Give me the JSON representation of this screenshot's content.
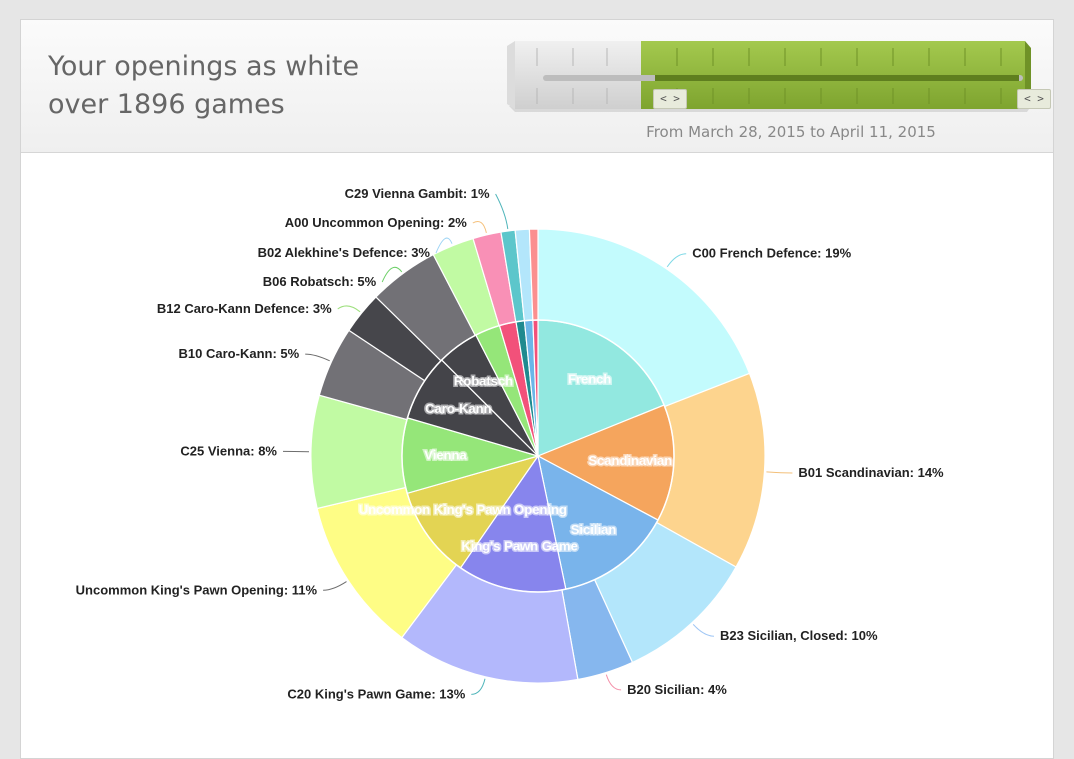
{
  "header": {
    "title_line1": "Your openings as white",
    "title_line2": "over 1896 games",
    "date_range": "From March 28, 2015 to April 11, 2015"
  },
  "slider": {
    "left_handle_icon": "arrows-left-right-icon",
    "right_handle_icon": "arrows-left-right-icon",
    "left_handle_text": "< >",
    "right_handle_text": "< >",
    "accent_color": "#8db33a"
  },
  "chart_data": {
    "type": "pie",
    "title": "",
    "outer": [
      {
        "label": "C00 French Defence",
        "value": 19,
        "color": "#c3fbfd"
      },
      {
        "label": "B01 Scandinavian",
        "value": 14,
        "color": "#fdd48e"
      },
      {
        "label": "B23 Sicilian, Closed",
        "value": 10,
        "color": "#b3e6fb"
      },
      {
        "label": "B20 Sicilian",
        "value": 4,
        "color": "#86b7ee"
      },
      {
        "label": "C20 King's Pawn Game",
        "value": 13,
        "color": "#b3b8fc"
      },
      {
        "label": "Uncommon King's Pawn Opening",
        "value": 11,
        "color": "#fefd85"
      },
      {
        "label": "C25 Vienna",
        "value": 8,
        "color": "#c1faa3"
      },
      {
        "label": "B10 Caro-Kann",
        "value": 5,
        "color": "#727176"
      },
      {
        "label": "B12 Caro-Kann Defence",
        "value": 3,
        "color": "#46464b"
      },
      {
        "label": "B06 Robatsch",
        "value": 5,
        "color": "#727176"
      },
      {
        "label": "B02 Alekhine's Defence",
        "value": 3,
        "color": "#c1faa3"
      },
      {
        "label": "A00 Uncommon Opening",
        "value": 2,
        "color": "#f990b6"
      },
      {
        "label": "C29 Vienna Gambit",
        "value": 1,
        "color": "#5cc6cb"
      },
      {
        "label": "",
        "value": 1,
        "color": "#b3e6fb"
      },
      {
        "label": "",
        "value": 0.6,
        "color": "#fb8f8f"
      }
    ],
    "inner": [
      {
        "label": "French",
        "value": 19,
        "color": "#92e8e0"
      },
      {
        "label": "Scandinavian",
        "value": 14,
        "color": "#f5a55d"
      },
      {
        "label": "Sicilian",
        "value": 14,
        "color": "#79b4eb"
      },
      {
        "label": "King's Pawn Game",
        "value": 13,
        "color": "#8785ed"
      },
      {
        "label": "Uncommon King's Pawn Opening",
        "value": 11,
        "color": "#e3d453"
      },
      {
        "label": "Vienna",
        "value": 9,
        "color": "#95e679"
      },
      {
        "label": "Caro-Kann",
        "value": 8,
        "color": "#444449"
      },
      {
        "label": "Robatsch",
        "value": 5,
        "color": "#444449"
      },
      {
        "label": "",
        "value": 3,
        "color": "#95e679"
      },
      {
        "label": "",
        "value": 2,
        "color": "#f2517a"
      },
      {
        "label": "",
        "value": 1,
        "color": "#1f8a8f"
      },
      {
        "label": "",
        "value": 1,
        "color": "#6bb6e8"
      },
      {
        "label": "",
        "value": 0.6,
        "color": "#f2517a"
      }
    ],
    "labels": [
      {
        "text": "C00 French Defence: 19%"
      },
      {
        "text": "B01 Scandinavian: 14%"
      },
      {
        "text": "B23 Sicilian, Closed: 10%"
      },
      {
        "text": "B20 Sicilian: 4%"
      },
      {
        "text": "C20 King's Pawn Game: 13%"
      },
      {
        "text": "Uncommon King's Pawn Opening: 11%"
      },
      {
        "text": "C25 Vienna: 8%"
      },
      {
        "text": "B10 Caro-Kann: 5%"
      },
      {
        "text": "B12 Caro-Kann Defence: 3%"
      },
      {
        "text": "B06 Robatsch: 5%"
      },
      {
        "text": "B02 Alekhine's Defence: 3%"
      },
      {
        "text": "A00 Uncommon Opening: 2%"
      },
      {
        "text": "C29 Vienna Gambit: 1%"
      }
    ]
  }
}
